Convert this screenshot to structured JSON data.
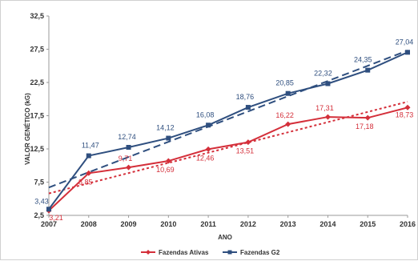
{
  "chart_data": {
    "type": "line",
    "title": "",
    "xlabel": "ANO",
    "ylabel": "VALOR GENÉTICO (kG)",
    "x": [
      "2007",
      "2008",
      "2009",
      "2010",
      "2011",
      "2012",
      "2013",
      "2014",
      "2015",
      "2016"
    ],
    "y_ticks": [
      "2,5",
      "7,5",
      "12,5",
      "17,5",
      "22,5",
      "27,5",
      "32,5"
    ],
    "ylim": [
      2.5,
      32.5
    ],
    "grid": false,
    "legend_position": "bottom",
    "series": [
      {
        "name": "Fazendas Ativas",
        "color": "#d42f3a",
        "marker": "diamond",
        "values": [
          3.21,
          8.85,
          9.71,
          10.69,
          12.46,
          13.51,
          16.22,
          17.31,
          17.18,
          18.73
        ],
        "labels": [
          "3,21",
          "8,85",
          "9,71",
          "10,69",
          "12,46",
          "13,51",
          "16,22",
          "17,31",
          "17,18",
          "18,73"
        ],
        "trendline": {
          "style": "dotted",
          "start": 5.8,
          "end": 19.6
        }
      },
      {
        "name": "Fazendas G2",
        "color": "#2f4f7f",
        "marker": "square",
        "values": [
          3.43,
          11.47,
          12.74,
          14.12,
          16.08,
          18.76,
          20.85,
          22.32,
          24.35,
          27.04
        ],
        "labels": [
          "3,43",
          "11,47",
          "12,74",
          "14,12",
          "16,08",
          "18,76",
          "20,85",
          "22,32",
          "24,35",
          "27,04"
        ],
        "trendline": {
          "style": "dashed",
          "start": 6.7,
          "end": 27.3
        }
      }
    ]
  }
}
